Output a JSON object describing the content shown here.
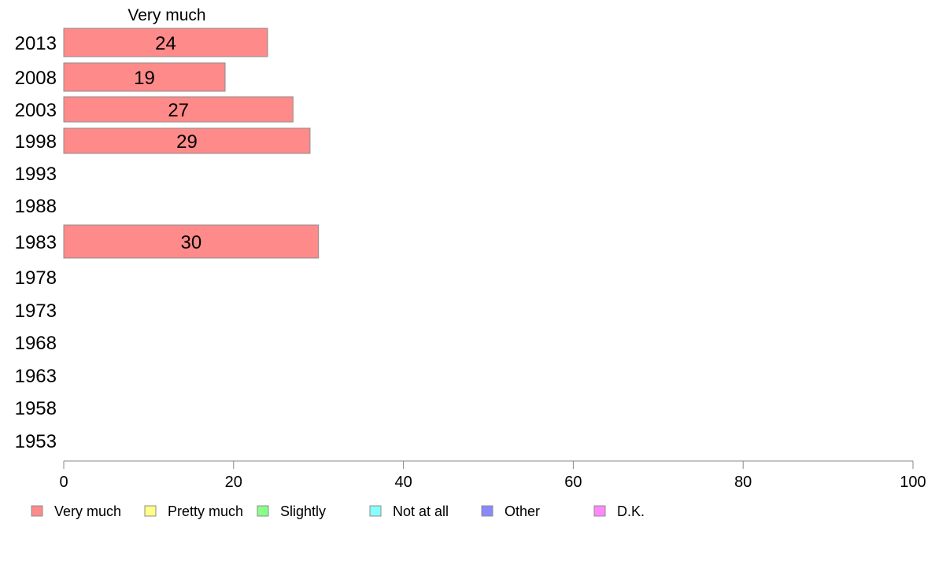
{
  "chart_data": {
    "type": "bar",
    "orientation": "horizontal",
    "stacked": true,
    "categories": [
      "2013",
      "2008",
      "2003",
      "1998",
      "1993",
      "1988",
      "1983",
      "1978",
      "1973",
      "1968",
      "1963",
      "1958",
      "1953"
    ],
    "series": [
      {
        "name": "Very much",
        "color": "#ff8a8a",
        "values": [
          24,
          19,
          27,
          29,
          null,
          null,
          30,
          null,
          null,
          null,
          null,
          null,
          null
        ]
      },
      {
        "name": "Pretty much",
        "color": "#ffff88",
        "values": [
          null,
          null,
          null,
          null,
          null,
          null,
          null,
          null,
          null,
          null,
          null,
          null,
          null
        ]
      },
      {
        "name": "Slightly",
        "color": "#88ff88",
        "values": [
          null,
          null,
          null,
          null,
          null,
          null,
          null,
          null,
          null,
          null,
          null,
          null,
          null
        ]
      },
      {
        "name": "Not at all",
        "color": "#88ffff",
        "values": [
          null,
          null,
          null,
          null,
          null,
          null,
          null,
          null,
          null,
          null,
          null,
          null,
          null
        ]
      },
      {
        "name": "Other",
        "color": "#8888ff",
        "values": [
          null,
          null,
          null,
          null,
          null,
          null,
          null,
          null,
          null,
          null,
          null,
          null,
          null
        ]
      },
      {
        "name": "D.K.",
        "color": "#ff88ff",
        "values": [
          null,
          null,
          null,
          null,
          null,
          null,
          null,
          null,
          null,
          null,
          null,
          null,
          null
        ]
      }
    ],
    "series_header": "Very much",
    "xlim": [
      0,
      100
    ],
    "xticks": [
      "0",
      "20",
      "40",
      "60",
      "80",
      "100"
    ],
    "grid": false,
    "legend_position": "bottom"
  }
}
